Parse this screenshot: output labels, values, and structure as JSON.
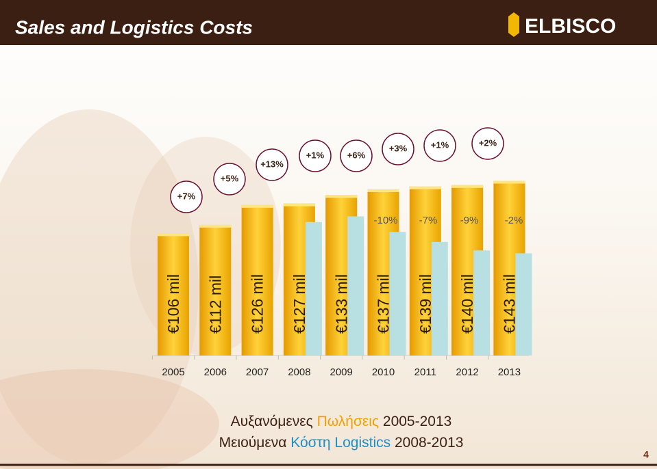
{
  "chart_data": {
    "type": "bar",
    "title": "Sales and Logistics Costs",
    "logo": "ELBISCO",
    "categories": [
      "2005",
      "2006",
      "2007",
      "2008",
      "2009",
      "2010",
      "2011",
      "2012",
      "2013"
    ],
    "series": [
      {
        "color": "#f2b705",
        "values": [
          106,
          112,
          126,
          127,
          133,
          137,
          139,
          140,
          143
        ],
        "value_labels": [
          "€106 mil",
          "€112 mil",
          "€126 mil",
          "€127 mil",
          "€133 mil",
          "€137 mil",
          "€139 mil",
          "€140 mil",
          "€143 mil"
        ]
      },
      {
        "color": "#b8dfe2",
        "values": [
          null,
          null,
          null,
          114,
          118,
          107,
          100,
          94,
          92
        ]
      }
    ],
    "ylim": [
      20,
      150
    ],
    "sales_growth": [
      "+7%",
      "+5%",
      "+13%",
      "+1%",
      "+6%",
      "+3%",
      "+1%",
      "+2%"
    ],
    "logistics_change": [
      "-10%",
      "-7%",
      "-9%",
      "-2%"
    ],
    "caption": [
      [
        "Αυξανόμενες ",
        "Πωλήσεις",
        " 2005-2013"
      ],
      [
        "Μειούμενα ",
        "Κόστη Logistics",
        " 2008-2013"
      ]
    ],
    "page_number": "4"
  }
}
